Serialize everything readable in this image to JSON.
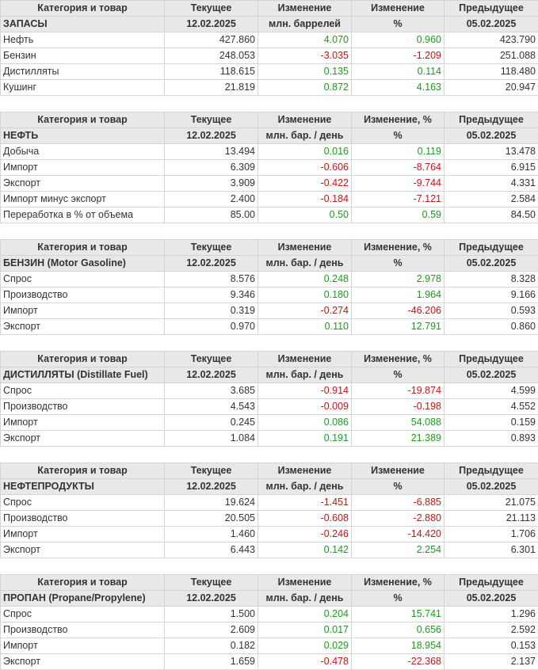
{
  "colors": {
    "positive": "#1a9e1a",
    "negative": "#cc1111",
    "header_bg": "#e8e8e8"
  },
  "tables": [
    {
      "h1": [
        "Категория и товар",
        "Текущее",
        "Изменение",
        "Изменение",
        "Предыдущее"
      ],
      "h2": [
        "ЗАПАСЫ",
        "12.02.2025",
        "млн. баррелей",
        "%",
        "05.02.2025"
      ],
      "rows": [
        [
          "Нефть",
          "427.860",
          "4.070",
          "0.960",
          "423.790"
        ],
        [
          "Бензин",
          "248.053",
          "-3.035",
          "-1.209",
          "251.088"
        ],
        [
          "Дистилляты",
          "118.615",
          "0.135",
          "0.114",
          "118.480"
        ],
        [
          "Кушинг",
          "21.819",
          "0.872",
          "4.163",
          "20.947"
        ]
      ]
    },
    {
      "h1": [
        "Категория и товар",
        "Текущее",
        "Изменение",
        "Изменение, %",
        "Предыдущее"
      ],
      "h2": [
        "НЕФТЬ",
        "12.02.2025",
        "млн. бар. / день",
        "%",
        "05.02.2025"
      ],
      "rows": [
        [
          "Добыча",
          "13.494",
          "0.016",
          "0.119",
          "13.478"
        ],
        [
          "Импорт",
          "6.309",
          "-0.606",
          "-8.764",
          "6.915"
        ],
        [
          "Экспорт",
          "3.909",
          "-0.422",
          "-9.744",
          "4.331"
        ],
        [
          "Импорт минус экспорт",
          "2.400",
          "-0.184",
          "-7.121",
          "2.584"
        ],
        [
          "Переработка в % от объема",
          "85.00",
          "0.50",
          "0.59",
          "84.50"
        ]
      ]
    },
    {
      "h1": [
        "Категория и товар",
        "Текущее",
        "Изменение",
        "Изменение, %",
        "Предыдущее"
      ],
      "h2": [
        "БЕНЗИН (Motor Gasoline)",
        "12.02.2025",
        "млн. бар. / день",
        "%",
        "05.02.2025"
      ],
      "rows": [
        [
          "Спрос",
          "8.576",
          "0.248",
          "2.978",
          "8.328"
        ],
        [
          "Производство",
          "9.346",
          "0.180",
          "1.964",
          "9.166"
        ],
        [
          "Импорт",
          "0.319",
          "-0.274",
          "-46.206",
          "0.593"
        ],
        [
          "Экспорт",
          "0.970",
          "0.110",
          "12.791",
          "0.860"
        ]
      ]
    },
    {
      "h1": [
        "Категория и товар",
        "Текущее",
        "Изменение",
        "Изменение, %",
        "Предыдущее"
      ],
      "h2": [
        "ДИСТИЛЛЯТЫ (Distillate Fuel)",
        "12.02.2025",
        "млн. бар. / день",
        "%",
        "05.02.2025"
      ],
      "rows": [
        [
          "Спрос",
          "3.685",
          "-0.914",
          "-19.874",
          "4.599"
        ],
        [
          "Производство",
          "4.543",
          "-0.009",
          "-0.198",
          "4.552"
        ],
        [
          "Импорт",
          "0.245",
          "0.086",
          "54.088",
          "0.159"
        ],
        [
          "Экспорт",
          "1.084",
          "0.191",
          "21.389",
          "0.893"
        ]
      ]
    },
    {
      "h1": [
        "Категория и товар",
        "Текущее",
        "Изменение",
        "Изменение",
        "Предыдущее"
      ],
      "h2": [
        "НЕФТЕПРОДУКТЫ",
        "12.02.2025",
        "млн. бар. / день",
        "%",
        "05.02.2025"
      ],
      "rows": [
        [
          "Спрос",
          "19.624",
          "-1.451",
          "-6.885",
          "21.075"
        ],
        [
          "Производство",
          "20.505",
          "-0.608",
          "-2.880",
          "21.113"
        ],
        [
          "Импорт",
          "1.460",
          "-0.246",
          "-14.420",
          "1.706"
        ],
        [
          "Экспорт",
          "6.443",
          "0.142",
          "2.254",
          "6.301"
        ]
      ]
    },
    {
      "h1": [
        "Категория и товар",
        "Текущее",
        "Изменение",
        "Изменение, %",
        "Предыдущее"
      ],
      "h2": [
        "ПРОПАН (Propane/Propylene)",
        "12.02.2025",
        "млн. бар. / день",
        "%",
        "05.02.2025"
      ],
      "rows": [
        [
          "Спрос",
          "1.500",
          "0.204",
          "15.741",
          "1.296"
        ],
        [
          "Производство",
          "2.609",
          "0.017",
          "0.656",
          "2.592"
        ],
        [
          "Импорт",
          "0.182",
          "0.029",
          "18.954",
          "0.153"
        ],
        [
          "Экспорт",
          "1.659",
          "-0.478",
          "-22.368",
          "2.137"
        ]
      ]
    }
  ]
}
